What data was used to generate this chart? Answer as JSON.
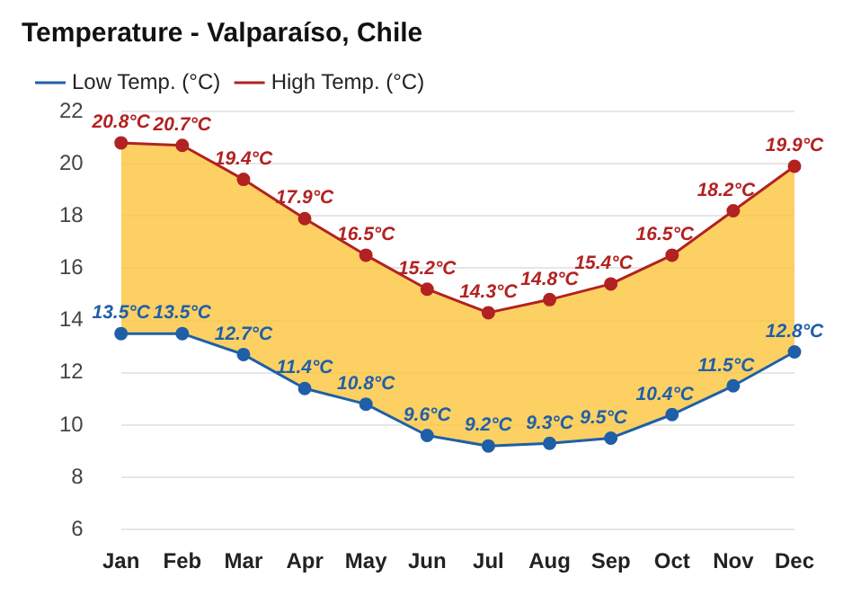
{
  "chart_data": {
    "type": "line",
    "title": "Temperature - Valparaíso, Chile",
    "categories": [
      "Jan",
      "Feb",
      "Mar",
      "Apr",
      "May",
      "Jun",
      "Jul",
      "Aug",
      "Sep",
      "Oct",
      "Nov",
      "Dec"
    ],
    "series": [
      {
        "name": "Low Temp. (°C)",
        "color": "#1f5fa8",
        "values": [
          13.5,
          13.5,
          12.7,
          11.4,
          10.8,
          9.6,
          9.2,
          9.3,
          9.5,
          10.4,
          11.5,
          12.8
        ],
        "value_labels": [
          "13.5°C",
          "13.5°C",
          "12.7°C",
          "11.4°C",
          "10.8°C",
          "9.6°C",
          "9.2°C",
          "9.3°C",
          "9.5°C",
          "10.4°C",
          "11.5°C",
          "12.8°C"
        ]
      },
      {
        "name": "High Temp. (°C)",
        "color": "#b22222",
        "values": [
          20.8,
          20.7,
          19.4,
          17.9,
          16.5,
          15.2,
          14.3,
          14.8,
          15.4,
          16.5,
          18.2,
          19.9
        ],
        "value_labels": [
          "20.8°C",
          "20.7°C",
          "19.4°C",
          "17.9°C",
          "16.5°C",
          "15.2°C",
          "14.3°C",
          "14.8°C",
          "15.4°C",
          "16.5°C",
          "18.2°C",
          "19.9°C"
        ]
      }
    ],
    "ylim": [
      6,
      22
    ],
    "yticks": [
      6,
      8,
      10,
      12,
      14,
      16,
      18,
      20,
      22
    ],
    "grid": "y",
    "legend": "top left",
    "marker": "circle",
    "line_style": "solid"
  }
}
